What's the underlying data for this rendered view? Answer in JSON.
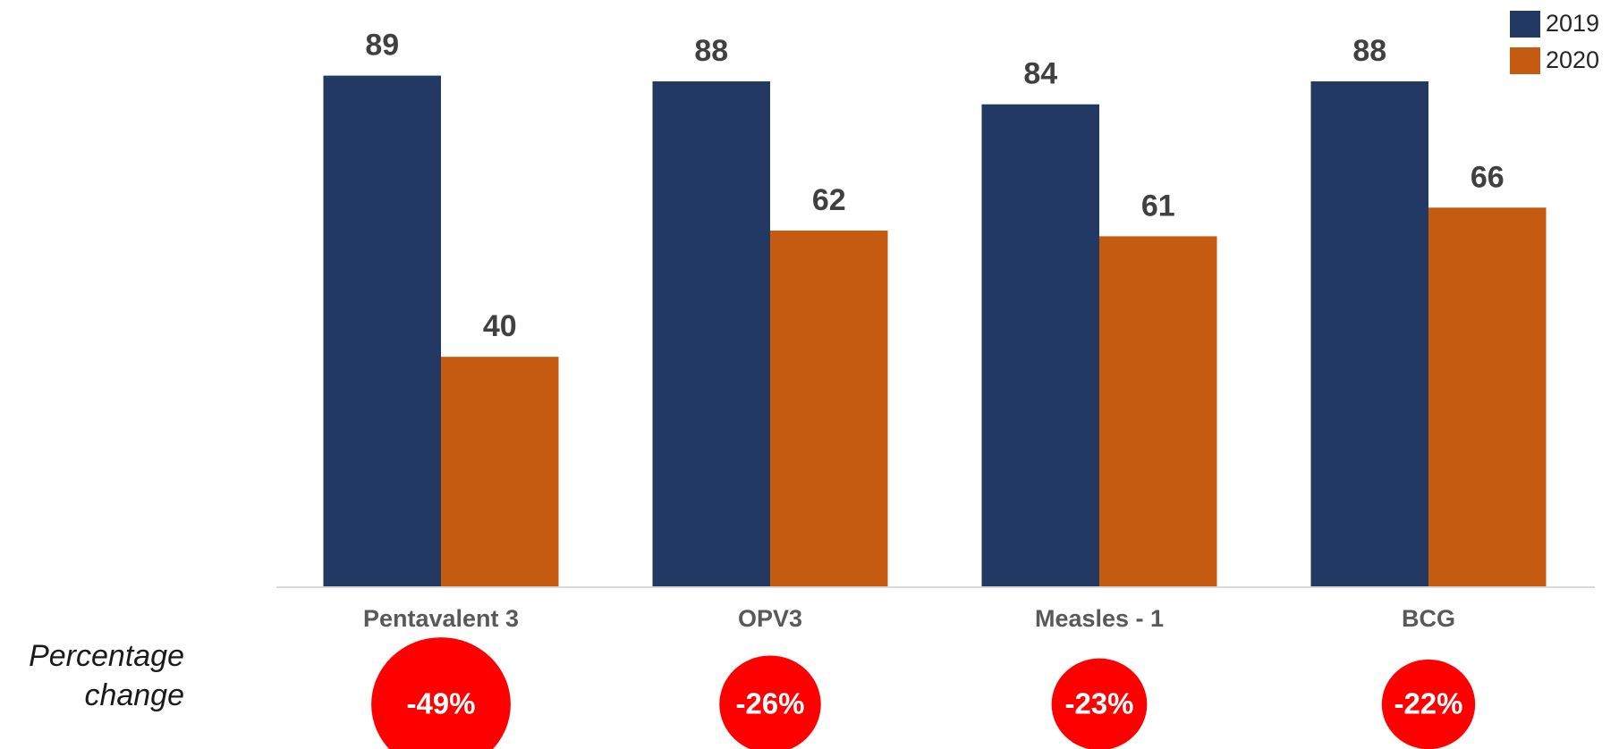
{
  "chart_data": {
    "type": "bar",
    "categories": [
      "Pentavalent 3",
      "OPV3",
      "Measles - 1",
      "BCG"
    ],
    "series": [
      {
        "name": "2019",
        "color": "#213963",
        "values": [
          89,
          88,
          84,
          88
        ]
      },
      {
        "name": "2020",
        "color": "#c55a11",
        "values": [
          40,
          62,
          61,
          66
        ]
      }
    ],
    "ylim": [
      0,
      100
    ],
    "row_label": "Percentage change",
    "percentage_change": {
      "color": "#ff0000",
      "values": [
        -49,
        -26,
        -23,
        -22
      ],
      "value_labels": [
        "-49%",
        "-26%",
        "-23%",
        "-22%"
      ]
    },
    "legend": "top-right"
  }
}
